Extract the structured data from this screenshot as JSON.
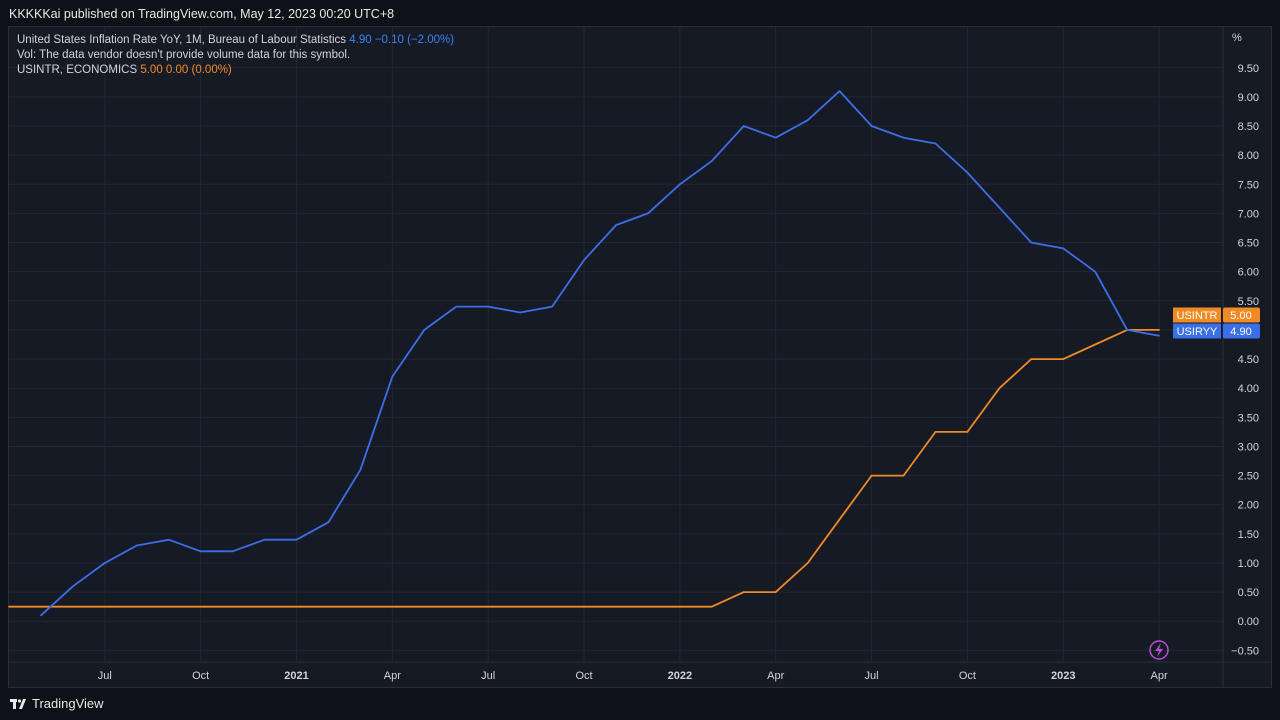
{
  "header": {
    "published": "KKKKKai published on TradingView.com, May 12, 2023 00:20 UTC+8"
  },
  "legend": {
    "row1_name": "United States Inflation Rate YoY, 1M, Bureau of Labour Statistics",
    "row1_value": "4.90",
    "row1_change": "−0.10 (−2.00%)",
    "row2": "Vol: The data vendor doesn't provide volume data for this symbol.",
    "row3_name": "USINTR, ECONOMICS",
    "row3_value": "5.00",
    "row3_change": "0.00 (0.00%)"
  },
  "footer": {
    "brand": "TradingView"
  },
  "colors": {
    "inflation": "#3b6fe8",
    "interest": "#f08a24",
    "grid": "#232733",
    "background": "#161a25",
    "alert": "#b84fd6"
  },
  "icons": {
    "alert": "lightning-icon",
    "logo": "tradingview-logo-icon"
  },
  "chart_data": {
    "type": "line",
    "x_unit": "month",
    "y_unit": "%",
    "xlim": [
      "2020-04",
      "2023-06"
    ],
    "ylim": [
      -0.7,
      10.2
    ],
    "y_ticks": [
      -0.5,
      0,
      0.5,
      1,
      1.5,
      2,
      2.5,
      3,
      3.5,
      4,
      4.5,
      5,
      5.5,
      6,
      6.5,
      7,
      7.5,
      8,
      8.5,
      9,
      9.5
    ],
    "x_ticks": [
      {
        "date": "2020-07",
        "label": "Jul",
        "bold": false
      },
      {
        "date": "2020-10",
        "label": "Oct",
        "bold": false
      },
      {
        "date": "2021-01",
        "label": "2021",
        "bold": true
      },
      {
        "date": "2021-04",
        "label": "Apr",
        "bold": false
      },
      {
        "date": "2021-07",
        "label": "Jul",
        "bold": false
      },
      {
        "date": "2021-10",
        "label": "Oct",
        "bold": false
      },
      {
        "date": "2022-01",
        "label": "2022",
        "bold": true
      },
      {
        "date": "2022-04",
        "label": "Apr",
        "bold": false
      },
      {
        "date": "2022-07",
        "label": "Jul",
        "bold": false
      },
      {
        "date": "2022-10",
        "label": "Oct",
        "bold": false
      },
      {
        "date": "2023-01",
        "label": "2023",
        "bold": true
      },
      {
        "date": "2023-04",
        "label": "Apr",
        "bold": false
      }
    ],
    "series": [
      {
        "name": "USIRYY",
        "last_value": "4.90",
        "points": [
          [
            "2020-05",
            0.1
          ],
          [
            "2020-06",
            0.6
          ],
          [
            "2020-07",
            1.0
          ],
          [
            "2020-08",
            1.3
          ],
          [
            "2020-09",
            1.4
          ],
          [
            "2020-10",
            1.2
          ],
          [
            "2020-11",
            1.2
          ],
          [
            "2020-12",
            1.4
          ],
          [
            "2021-01",
            1.4
          ],
          [
            "2021-02",
            1.7
          ],
          [
            "2021-03",
            2.6
          ],
          [
            "2021-04",
            4.2
          ],
          [
            "2021-05",
            5.0
          ],
          [
            "2021-06",
            5.4
          ],
          [
            "2021-07",
            5.4
          ],
          [
            "2021-08",
            5.3
          ],
          [
            "2021-09",
            5.4
          ],
          [
            "2021-10",
            6.2
          ],
          [
            "2021-11",
            6.8
          ],
          [
            "2021-12",
            7.0
          ],
          [
            "2022-01",
            7.5
          ],
          [
            "2022-02",
            7.9
          ],
          [
            "2022-03",
            8.5
          ],
          [
            "2022-04",
            8.3
          ],
          [
            "2022-05",
            8.6
          ],
          [
            "2022-06",
            9.1
          ],
          [
            "2022-07",
            8.5
          ],
          [
            "2022-08",
            8.3
          ],
          [
            "2022-09",
            8.2
          ],
          [
            "2022-10",
            7.7
          ],
          [
            "2022-11",
            7.1
          ],
          [
            "2022-12",
            6.5
          ],
          [
            "2023-01",
            6.4
          ],
          [
            "2023-02",
            6.0
          ],
          [
            "2023-03",
            5.0
          ],
          [
            "2023-04",
            4.9
          ]
        ]
      },
      {
        "name": "USINTR",
        "last_value": "5.00",
        "points": [
          [
            "2020-04",
            0.25
          ],
          [
            "2022-02",
            0.25
          ],
          [
            "2022-03",
            0.5
          ],
          [
            "2022-04",
            0.5
          ],
          [
            "2022-05",
            1.0
          ],
          [
            "2022-06",
            1.75
          ],
          [
            "2022-07",
            2.5
          ],
          [
            "2022-08",
            2.5
          ],
          [
            "2022-09",
            3.25
          ],
          [
            "2022-10",
            3.25
          ],
          [
            "2022-11",
            4.0
          ],
          [
            "2022-12",
            4.5
          ],
          [
            "2023-01",
            4.5
          ],
          [
            "2023-02",
            4.75
          ],
          [
            "2023-03",
            5.0
          ],
          [
            "2023-04",
            5.0
          ]
        ]
      }
    ]
  }
}
